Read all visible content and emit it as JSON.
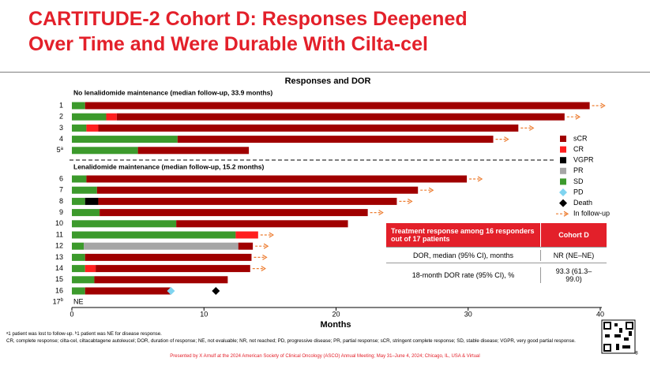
{
  "header": {
    "title": [
      "CARTITUDE-2 Cohort D: Responses Deepened",
      "Over Time and Were Durable With Cilta-cel"
    ]
  },
  "chart_data": {
    "type": "swimmer",
    "title": "Responses and DOR",
    "x_label": "Months",
    "xlim": [
      0,
      40
    ],
    "xticks": [
      0,
      10,
      20,
      30,
      40
    ],
    "legend": [
      {
        "name": "sCR",
        "color": "#a00000",
        "shape": "rect"
      },
      {
        "name": "CR",
        "color": "#ff1f1f",
        "shape": "rect"
      },
      {
        "name": "VGPR",
        "color": "#000000",
        "shape": "rect"
      },
      {
        "name": "PR",
        "color": "#a6a6a6",
        "shape": "rect"
      },
      {
        "name": "SD",
        "color": "#3c9a2c",
        "shape": "rect"
      },
      {
        "name": "PD",
        "color": "#7fd4f0",
        "shape": "diamond"
      },
      {
        "name": "Death",
        "color": "#000000",
        "shape": "diamond"
      },
      {
        "name": "In follow-up",
        "color": "#ed7d31",
        "shape": "arrow"
      }
    ],
    "groups": [
      {
        "label": "No lenalidomide maintenance (median follow-up, 33.9 months)",
        "patients": [
          {
            "label": "1",
            "follow_up": true,
            "segments": [
              {
                "status": "SD",
                "value": 1
              },
              {
                "status": "sCR",
                "value": 38.2
              }
            ]
          },
          {
            "label": "2",
            "follow_up": true,
            "segments": [
              {
                "status": "SD",
                "value": 2.6
              },
              {
                "status": "CR",
                "value": 0.8
              },
              {
                "status": "sCR",
                "value": 33.9
              }
            ]
          },
          {
            "label": "3",
            "follow_up": true,
            "segments": [
              {
                "status": "SD",
                "value": 1.1
              },
              {
                "status": "CR",
                "value": 0.9
              },
              {
                "status": "sCR",
                "value": 31.8
              }
            ]
          },
          {
            "label": "4",
            "follow_up": true,
            "segments": [
              {
                "status": "SD",
                "value": 8
              },
              {
                "status": "sCR",
                "value": 23.9
              }
            ]
          },
          {
            "label": "5",
            "note": "a",
            "follow_up": false,
            "segments": [
              {
                "status": "SD",
                "value": 5
              },
              {
                "status": "sCR",
                "value": 8.4
              }
            ]
          }
        ]
      },
      {
        "label": "Lenalidomide maintenance (median follow-up, 15.2 months)",
        "patients": [
          {
            "label": "6",
            "follow_up": true,
            "segments": [
              {
                "status": "SD",
                "value": 1.1
              },
              {
                "status": "sCR",
                "value": 28.8
              }
            ]
          },
          {
            "label": "7",
            "follow_up": true,
            "segments": [
              {
                "status": "SD",
                "value": 1.9
              },
              {
                "status": "sCR",
                "value": 24.3
              }
            ]
          },
          {
            "label": "8",
            "follow_up": true,
            "segments": [
              {
                "status": "SD",
                "value": 1
              },
              {
                "status": "VGPR",
                "value": 1
              },
              {
                "status": "sCR",
                "value": 22.6
              }
            ]
          },
          {
            "label": "9",
            "follow_up": true,
            "segments": [
              {
                "status": "SD",
                "value": 2.1
              },
              {
                "status": "sCR",
                "value": 20.3
              }
            ]
          },
          {
            "label": "10",
            "follow_up": false,
            "segments": [
              {
                "status": "SD",
                "value": 7.9
              },
              {
                "status": "sCR",
                "value": 13
              }
            ]
          },
          {
            "label": "11",
            "follow_up": true,
            "segments": [
              {
                "status": "SD",
                "value": 12.4
              },
              {
                "status": "CR",
                "value": 1.7
              }
            ]
          },
          {
            "label": "12",
            "follow_up": true,
            "segments": [
              {
                "status": "SD",
                "value": 0.9
              },
              {
                "status": "PR",
                "value": 11.7
              },
              {
                "status": "sCR",
                "value": 1.1
              }
            ]
          },
          {
            "label": "13",
            "follow_up": true,
            "segments": [
              {
                "status": "SD",
                "value": 1
              },
              {
                "status": "sCR",
                "value": 12.6
              }
            ]
          },
          {
            "label": "14",
            "follow_up": true,
            "segments": [
              {
                "status": "SD",
                "value": 1
              },
              {
                "status": "CR",
                "value": 0.8
              },
              {
                "status": "sCR",
                "value": 11.7
              }
            ]
          },
          {
            "label": "15",
            "follow_up": false,
            "segments": [
              {
                "status": "SD",
                "value": 1.7
              },
              {
                "status": "sCR",
                "value": 10.1
              }
            ]
          },
          {
            "label": "16",
            "follow_up": false,
            "segments": [
              {
                "status": "SD",
                "value": 1
              },
              {
                "status": "sCR",
                "value": 6.5
              }
            ],
            "pd": 7.5,
            "death": 10.9
          },
          {
            "label": "17",
            "note": "b",
            "follow_up": false,
            "segments": [],
            "text": "NE"
          }
        ]
      }
    ]
  },
  "table": {
    "header": [
      "Treatment response among 16 responders out of 17 patients",
      "Cohort D"
    ],
    "rows": [
      [
        "DOR, median (95% CI), months",
        "NR (NE–NE)"
      ],
      [
        "18-month DOR rate (95% CI), %",
        "93.3 (61.3–99.0)"
      ]
    ]
  },
  "footnotes": [
    "ᵃ1 patient was lost to follow-up. ᵇ1 patient was NE for disease response.",
    "CR, complete response; cilta-cel, ciltacabtagene autoleucel; DOR, duration of response; NE, not evaluable; NR, not reached; PD, progressive disease; PR, partial response; sCR, stringent complete response; SD, stable disease; VGPR, very good partial response."
  ],
  "footer": "Presented by X Arnulf at the 2024 American Society of Clinical Oncology (ASCO) Annual Meeting; May 31–June 4, 2024; Chicago, IL, USA & Virtual",
  "page_number": "8"
}
